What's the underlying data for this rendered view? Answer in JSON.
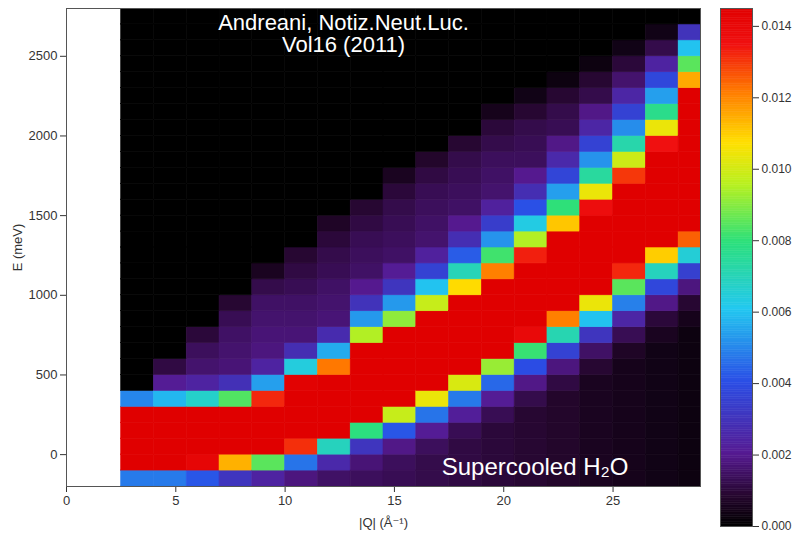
{
  "chart_data": {
    "type": "heatmap",
    "annotations": [
      "Andreani, Notiz.Neut.Luc. Vol16 (2011)",
      "Supercooled H₂O"
    ],
    "x_label": "|Q| (Å⁻¹)",
    "y_label": "E (meV)",
    "xlim": [
      0,
      29
    ],
    "xticks": [
      0,
      5,
      10,
      15,
      20,
      25
    ],
    "ylim": [
      -200,
      2800
    ],
    "yticks": [
      0,
      500,
      1000,
      1500,
      2000,
      2500
    ],
    "x_edges": [
      2.5,
      4,
      5.5,
      7,
      8.5,
      10,
      11.5,
      13,
      14.5,
      16,
      17.5,
      19,
      20.5,
      22,
      23.5,
      25,
      26.5,
      28,
      29
    ],
    "y_edges": [
      -200,
      -100,
      0,
      100,
      200,
      300,
      400,
      500,
      600,
      700,
      800,
      900,
      1000,
      1100,
      1200,
      1300,
      1400,
      1500,
      1600,
      1700,
      1800,
      1900,
      2000,
      2100,
      2200,
      2300,
      2400,
      2500,
      2600,
      2700,
      2800
    ],
    "values": [
      [
        0.0048,
        0.0145,
        0.0145,
        0.0145,
        0.0145,
        0.005,
        0,
        0,
        0,
        0,
        0,
        0,
        0,
        0,
        0,
        0,
        0,
        0,
        0,
        0,
        0,
        0,
        0,
        0,
        0,
        0,
        0,
        0,
        0,
        0
      ],
      [
        0.0048,
        0.0145,
        0.0145,
        0.0145,
        0.0145,
        0.0058,
        0.0021,
        0.0011,
        0,
        0,
        0,
        0,
        0,
        0,
        0,
        0,
        0,
        0,
        0,
        0,
        0,
        0,
        0,
        0,
        0,
        0,
        0,
        0,
        0,
        0
      ],
      [
        0.0042,
        0.0141,
        0.0145,
        0.0145,
        0.0145,
        0.0067,
        0.0024,
        0.0016,
        0.0014,
        0.001,
        0,
        0,
        0,
        0,
        0,
        0,
        0,
        0,
        0,
        0,
        0,
        0,
        0,
        0,
        0,
        0,
        0,
        0,
        0,
        0
      ],
      [
        0.0031,
        0.0114,
        0.0145,
        0.0145,
        0.0145,
        0.0084,
        0.0029,
        0.0017,
        0.0016,
        0.0015,
        0.0013,
        0.0009,
        0,
        0,
        0,
        0,
        0,
        0,
        0,
        0,
        0,
        0,
        0,
        0,
        0,
        0,
        0,
        0,
        0,
        0
      ],
      [
        0.0024,
        0.0085,
        0.0145,
        0.0145,
        0.0145,
        0.0132,
        0.0054,
        0.0024,
        0.0018,
        0.0017,
        0.0016,
        0.0015,
        0.0012,
        0.0006,
        0,
        0,
        0,
        0,
        0,
        0,
        0,
        0,
        0,
        0,
        0,
        0,
        0,
        0,
        0,
        0
      ],
      [
        0.0018,
        0.0047,
        0.0131,
        0.0145,
        0.0145,
        0.0145,
        0.0144,
        0.0064,
        0.0028,
        0.0017,
        0.0016,
        0.0015,
        0.0013,
        0.0011,
        0.0009,
        0,
        0,
        0,
        0,
        0,
        0,
        0,
        0,
        0,
        0,
        0,
        0,
        0,
        0,
        0
      ],
      [
        0.0015,
        0.0026,
        0.0069,
        0.0145,
        0.0145,
        0.0145,
        0.0145,
        0.0122,
        0.0056,
        0.0027,
        0.0017,
        0.0016,
        0.0015,
        0.0013,
        0.0012,
        0.001,
        0.0007,
        0,
        0,
        0,
        0,
        0,
        0,
        0,
        0,
        0,
        0,
        0,
        0,
        0
      ],
      [
        0.0014,
        0.0017,
        0.0031,
        0.0079,
        0.0145,
        0.0145,
        0.0145,
        0.0145,
        0.0145,
        0.0095,
        0.0053,
        0.003,
        0.002,
        0.0015,
        0.0014,
        0.0013,
        0.0011,
        0.0009,
        0,
        0,
        0,
        0,
        0,
        0,
        0,
        0,
        0,
        0,
        0,
        0
      ],
      [
        0.0013,
        0.0014,
        0.0019,
        0.0042,
        0.0098,
        0.0145,
        0.0145,
        0.0145,
        0.0145,
        0.0145,
        0.0091,
        0.0053,
        0.0031,
        0.0021,
        0.0015,
        0.0014,
        0.0013,
        0.0012,
        0.001,
        0.0006,
        0,
        0,
        0,
        0,
        0,
        0,
        0,
        0,
        0,
        0
      ],
      [
        0.0012,
        0.0012,
        0.0014,
        0.0021,
        0.0047,
        0.0104,
        0.0145,
        0.0145,
        0.0145,
        0.0145,
        0.0145,
        0.0098,
        0.006,
        0.0036,
        0.0023,
        0.0016,
        0.0015,
        0.0014,
        0.0013,
        0.0011,
        0.0008,
        0,
        0,
        0,
        0,
        0,
        0,
        0,
        0,
        0
      ],
      [
        0.0011,
        0.0011,
        0.0011,
        0.0013,
        0.0022,
        0.0048,
        0.0101,
        0.0145,
        0.0145,
        0.0145,
        0.0145,
        0.0145,
        0.0108,
        0.007,
        0.0043,
        0.0028,
        0.002,
        0.0015,
        0.0014,
        0.0013,
        0.0012,
        0.0009,
        0,
        0,
        0,
        0,
        0,
        0,
        0,
        0
      ],
      [
        0.001,
        0.001,
        0.001,
        0.001,
        0.0013,
        0.0021,
        0.0045,
        0.0092,
        0.0145,
        0.0145,
        0.0145,
        0.0145,
        0.0145,
        0.0121,
        0.0082,
        0.0052,
        0.0034,
        0.0023,
        0.0016,
        0.0015,
        0.0014,
        0.0012,
        0.001,
        0.0005,
        0,
        0,
        0,
        0,
        0,
        0
      ],
      [
        0.0009,
        0.0009,
        0.0009,
        0.0009,
        0.0009,
        0.0012,
        0.0019,
        0.004,
        0.0081,
        0.0139,
        0.0145,
        0.0145,
        0.0145,
        0.0145,
        0.0133,
        0.0095,
        0.0063,
        0.0041,
        0.0028,
        0.002,
        0.0014,
        0.0013,
        0.0012,
        0.0009,
        0.0004,
        0,
        0,
        0,
        0,
        0
      ],
      [
        0.0008,
        0.0008,
        0.0008,
        0.0008,
        0.0008,
        0.0008,
        0.0011,
        0.0018,
        0.0036,
        0.0071,
        0.0121,
        0.0145,
        0.0145,
        0.0145,
        0.0145,
        0.0145,
        0.0111,
        0.008,
        0.0054,
        0.0037,
        0.0026,
        0.0019,
        0.0013,
        0.0012,
        0.0009,
        0.0003,
        0,
        0,
        0,
        0
      ],
      [
        0.0006,
        0.0006,
        0.0006,
        0.0006,
        0.0006,
        0.0006,
        0.0006,
        0.0009,
        0.0015,
        0.0031,
        0.006,
        0.0104,
        0.0145,
        0.0145,
        0.0145,
        0.0145,
        0.0145,
        0.0137,
        0.0104,
        0.0074,
        0.0052,
        0.0036,
        0.0025,
        0.0019,
        0.0012,
        0.0009,
        0.0003,
        0,
        0,
        0
      ],
      [
        0.0005,
        0.0005,
        0.0005,
        0.0005,
        0.0005,
        0.0005,
        0.0005,
        0.0005,
        0.0007,
        0.0013,
        0.0025,
        0.0049,
        0.0085,
        0.0132,
        0.0145,
        0.0145,
        0.0145,
        0.0145,
        0.0145,
        0.013,
        0.0099,
        0.0072,
        0.0051,
        0.0036,
        0.0025,
        0.0016,
        0.001,
        0.0004,
        0,
        0
      ],
      [
        0.0004,
        0.0004,
        0.0004,
        0.0004,
        0.0004,
        0.0004,
        0.0004,
        0.0004,
        0.0004,
        0.0006,
        0.001,
        0.0019,
        0.0038,
        0.0069,
        0.011,
        0.0145,
        0.0145,
        0.0145,
        0.0145,
        0.0145,
        0.0145,
        0.0135,
        0.0104,
        0.0077,
        0.0054,
        0.0038,
        0.0024,
        0.0012,
        0.0004,
        0
      ],
      [
        0.0003,
        0.0003,
        0.0003,
        0.0003,
        0.0003,
        0.0003,
        0.0003,
        0.0003,
        0.0003,
        0.0003,
        0.0005,
        0.0009,
        0.0018,
        0.0035,
        0.0065,
        0.0125,
        0.0145,
        0.0145,
        0.0145,
        0.0145,
        0.0145,
        0.0145,
        0.0145,
        0.0145,
        0.0145,
        0.0115,
        0.0085,
        0.006,
        0.003,
        0
      ]
    ],
    "colorbar": {
      "range": [
        0,
        0.0145
      ],
      "ticks": [
        {
          "value": 0,
          "label": "0.000"
        },
        {
          "value": 0.002,
          "label": "0.002"
        },
        {
          "value": 0.004,
          "label": "0.004"
        },
        {
          "value": 0.006,
          "label": "0.006"
        },
        {
          "value": 0.008,
          "label": "0.008"
        },
        {
          "value": 0.01,
          "label": "0.010"
        },
        {
          "value": 0.012,
          "label": "0.012"
        },
        {
          "value": 0.014,
          "label": "0.014"
        }
      ]
    }
  }
}
